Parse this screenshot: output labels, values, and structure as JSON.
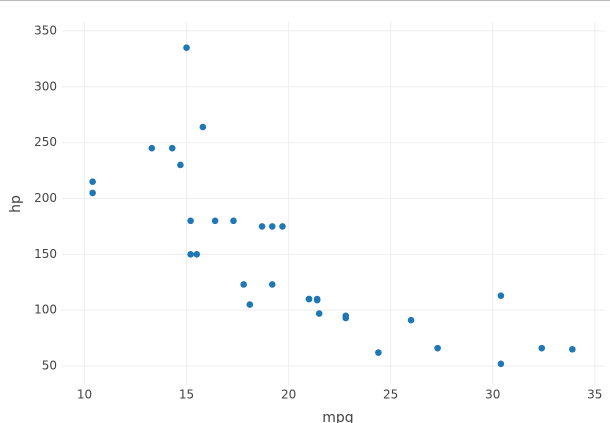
{
  "chart_data": {
    "type": "scatter",
    "x_label": "mpg",
    "y_label": "hp",
    "color": "#1f77b4",
    "grid": true,
    "x": [
      21,
      21,
      22.8,
      21.4,
      18.7,
      18.1,
      14.3,
      24.4,
      22.8,
      19.2,
      17.8,
      16.4,
      17.3,
      15.2,
      10.4,
      10.4,
      14.7,
      32.4,
      30.4,
      33.9,
      21.5,
      15.5,
      15.2,
      13.3,
      19.2,
      27.3,
      26,
      30.4,
      15.8,
      19.7,
      15,
      21.4
    ],
    "values": [
      110,
      110,
      93,
      110,
      175,
      105,
      245,
      62,
      95,
      123,
      123,
      180,
      180,
      180,
      205,
      215,
      230,
      66,
      52,
      65,
      97,
      150,
      150,
      245,
      175,
      66,
      91,
      113,
      264,
      175,
      335,
      109
    ],
    "xlim": [
      8.9,
      35.5
    ],
    "xticks": [
      10,
      15,
      20,
      25,
      30,
      35
    ],
    "ylim": [
      33,
      358
    ],
    "yticks": [
      50,
      100,
      150,
      200,
      250,
      300,
      350
    ]
  }
}
